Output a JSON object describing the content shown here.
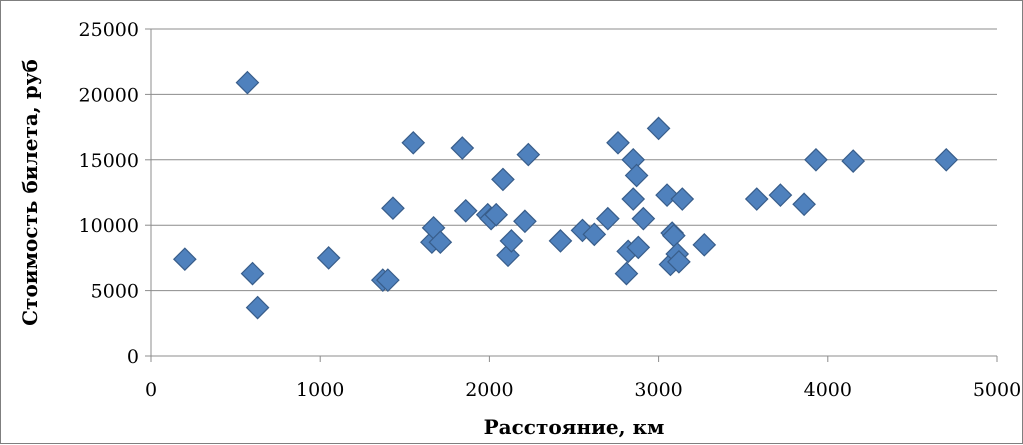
{
  "chart_data": {
    "type": "scatter",
    "title": "",
    "xlabel": "Расстояние, км",
    "ylabel": "Стоимость билета, руб",
    "xlim": [
      0,
      5000
    ],
    "ylim": [
      0,
      25000
    ],
    "x_ticks": [
      "0",
      "1000",
      "2000",
      "3000",
      "4000",
      "5000"
    ],
    "y_ticks": [
      "0",
      "5000",
      "10000",
      "15000",
      "20000",
      "25000"
    ],
    "grid": "horizontal",
    "legend": "none",
    "marker": "diamond",
    "colors": {
      "marker_fill": "#4f81bd",
      "marker_edge": "#385d8a",
      "grid": "#8c8c8c"
    },
    "series": [
      {
        "points": [
          [
            200,
            7400
          ],
          [
            570,
            20900
          ],
          [
            600,
            6300
          ],
          [
            630,
            3700
          ],
          [
            1050,
            7500
          ],
          [
            1370,
            5800
          ],
          [
            1400,
            5800
          ],
          [
            1430,
            11300
          ],
          [
            1550,
            16300
          ],
          [
            1660,
            8700
          ],
          [
            1670,
            9800
          ],
          [
            1710,
            8700
          ],
          [
            1840,
            15900
          ],
          [
            1860,
            11100
          ],
          [
            1990,
            10800
          ],
          [
            2010,
            10500
          ],
          [
            2040,
            10800
          ],
          [
            2080,
            13500
          ],
          [
            2110,
            7700
          ],
          [
            2130,
            8800
          ],
          [
            2210,
            10300
          ],
          [
            2230,
            15400
          ],
          [
            2420,
            8800
          ],
          [
            2550,
            9600
          ],
          [
            2620,
            9300
          ],
          [
            2700,
            10500
          ],
          [
            2760,
            16300
          ],
          [
            2810,
            6300
          ],
          [
            2820,
            8000
          ],
          [
            2850,
            12000
          ],
          [
            2850,
            15000
          ],
          [
            2870,
            13800
          ],
          [
            2880,
            8300
          ],
          [
            2910,
            10500
          ],
          [
            3000,
            17400
          ],
          [
            3050,
            12300
          ],
          [
            3070,
            7000
          ],
          [
            3080,
            9400
          ],
          [
            3090,
            9200
          ],
          [
            3110,
            7800
          ],
          [
            3120,
            7200
          ],
          [
            3140,
            12000
          ],
          [
            3270,
            8500
          ],
          [
            3580,
            12000
          ],
          [
            3720,
            12300
          ],
          [
            3860,
            11600
          ],
          [
            3930,
            15000
          ],
          [
            4150,
            14900
          ],
          [
            4700,
            15000
          ]
        ]
      }
    ]
  }
}
